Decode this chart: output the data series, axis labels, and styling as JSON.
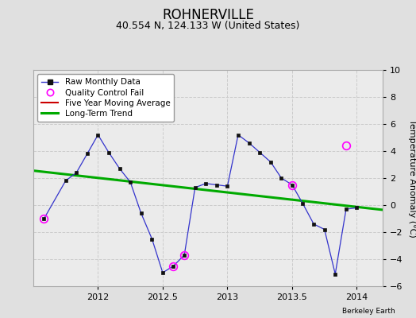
{
  "title": "ROHNERVILLE",
  "subtitle": "40.554 N, 124.133 W (United States)",
  "credit": "Berkeley Earth",
  "ylabel": "Temperature Anomaly (°C)",
  "xlim": [
    2011.5,
    2014.2
  ],
  "ylim": [
    -6,
    10
  ],
  "yticks": [
    -6,
    -4,
    -2,
    0,
    2,
    4,
    6,
    8,
    10
  ],
  "xticks": [
    2012,
    2012.5,
    2013,
    2013.5,
    2014
  ],
  "xticklabels": [
    "2012",
    "2012.5",
    "2013",
    "2013.5",
    "2014"
  ],
  "background_color": "#e0e0e0",
  "plot_bg_color": "#ebebeb",
  "raw_x": [
    2011.583,
    2011.75,
    2011.833,
    2011.917,
    2012.0,
    2012.083,
    2012.167,
    2012.25,
    2012.333,
    2012.417,
    2012.5,
    2012.583,
    2012.667,
    2012.75,
    2012.833,
    2012.917,
    2013.0,
    2013.083,
    2013.167,
    2013.25,
    2013.333,
    2013.417,
    2013.5,
    2013.583,
    2013.667,
    2013.75,
    2013.833,
    2013.917,
    2014.0
  ],
  "raw_y": [
    -1.0,
    1.8,
    2.4,
    3.8,
    5.2,
    3.9,
    2.7,
    1.7,
    -0.6,
    -2.5,
    -5.0,
    -4.5,
    -3.7,
    1.3,
    1.6,
    1.5,
    1.4,
    5.2,
    4.6,
    3.9,
    3.2,
    2.0,
    1.5,
    0.1,
    -1.4,
    -1.8,
    -5.1,
    -0.3,
    -0.2
  ],
  "qc_x": [
    2011.583,
    2012.583,
    2012.667,
    2013.5,
    2013.917
  ],
  "qc_y": [
    -1.0,
    -4.5,
    -3.7,
    1.5,
    4.4
  ],
  "trend_x": [
    2011.5,
    2014.2
  ],
  "trend_y": [
    2.55,
    -0.35
  ],
  "raw_line_color": "#3333cc",
  "raw_marker_color": "#111111",
  "qc_color": "#ff00ff",
  "trend_color": "#00aa00",
  "moving_avg_color": "#cc0000",
  "grid_color": "#cccccc",
  "title_fontsize": 12,
  "subtitle_fontsize": 9,
  "tick_fontsize": 8,
  "legend_fontsize": 7.5
}
